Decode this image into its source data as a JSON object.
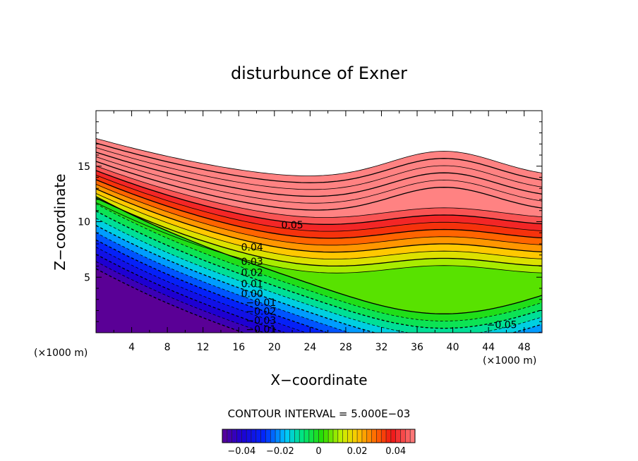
{
  "chart_data": {
    "type": "contour",
    "title": "disturbunce of Exner",
    "xlabel": "X−coordinate",
    "ylabel": "Z−coordinate",
    "x_unit_label": "(×1000 m)",
    "y_unit_label": "(×1000 m)",
    "xlim": [
      0,
      50
    ],
    "ylim": [
      0,
      20
    ],
    "xticks": [
      "4",
      "8",
      "12",
      "16",
      "20",
      "24",
      "28",
      "32",
      "36",
      "40",
      "44",
      "48"
    ],
    "xtick_values": [
      4,
      8,
      12,
      16,
      20,
      24,
      28,
      32,
      36,
      40,
      44,
      48
    ],
    "yticks": [
      "5",
      "10",
      "15"
    ],
    "ytick_values": [
      5,
      10,
      15
    ],
    "contour_interval_text": "CONTOUR INTERVAL = 5.000E−03",
    "contour_interval": 0.005,
    "field_range": [
      -0.05,
      0.05
    ],
    "max_plotted_level": 0.075,
    "negative_contours": "dashed",
    "contour_labels": [
      {
        "text": "0.05",
        "x": 22,
        "z": 9.6
      },
      {
        "text": "0.04",
        "x": 17.5,
        "z": 7.6
      },
      {
        "text": "0.03",
        "x": 17.5,
        "z": 6.3
      },
      {
        "text": "0.02",
        "x": 17.5,
        "z": 5.3
      },
      {
        "text": "0.01",
        "x": 17.5,
        "z": 4.3
      },
      {
        "text": "0.00",
        "x": 17.5,
        "z": 3.4
      },
      {
        "text": "−0.01",
        "x": 18.5,
        "z": 2.6
      },
      {
        "text": "−0.02",
        "x": 18.5,
        "z": 1.8
      },
      {
        "text": "−0.03",
        "x": 18.5,
        "z": 1.0
      },
      {
        "text": "−0.01",
        "x": 18.5,
        "z": 0.2
      },
      {
        "text": "−0.05",
        "x": 45.5,
        "z": 0.6
      }
    ],
    "colorbar": {
      "ticks": [
        "−0.04",
        "−0.02",
        "0",
        "0.02",
        "0.04"
      ],
      "tick_values": [
        -0.04,
        -0.02,
        0,
        0.02,
        0.04
      ],
      "range": [
        -0.05,
        0.05
      ]
    },
    "grid": false,
    "legend": "colorbar-bottom"
  }
}
